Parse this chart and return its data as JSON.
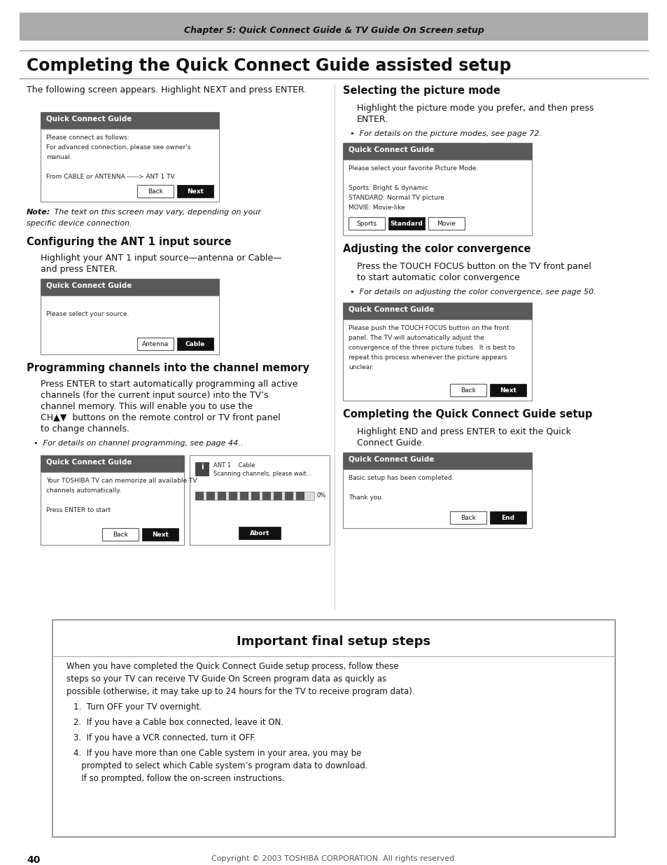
{
  "page_title": "Chapter 5: Quick Connect Guide & TV Guide On Screen setup",
  "main_title": "Completing the Quick Connect Guide assisted setup",
  "footer_text": "40",
  "footer_copyright": "Copyright © 2003 TOSHIBA CORPORATION. All rights reserved.",
  "bg_color": "#ffffff",
  "fig_w": 9.54,
  "fig_h": 12.35,
  "dpi": 100
}
